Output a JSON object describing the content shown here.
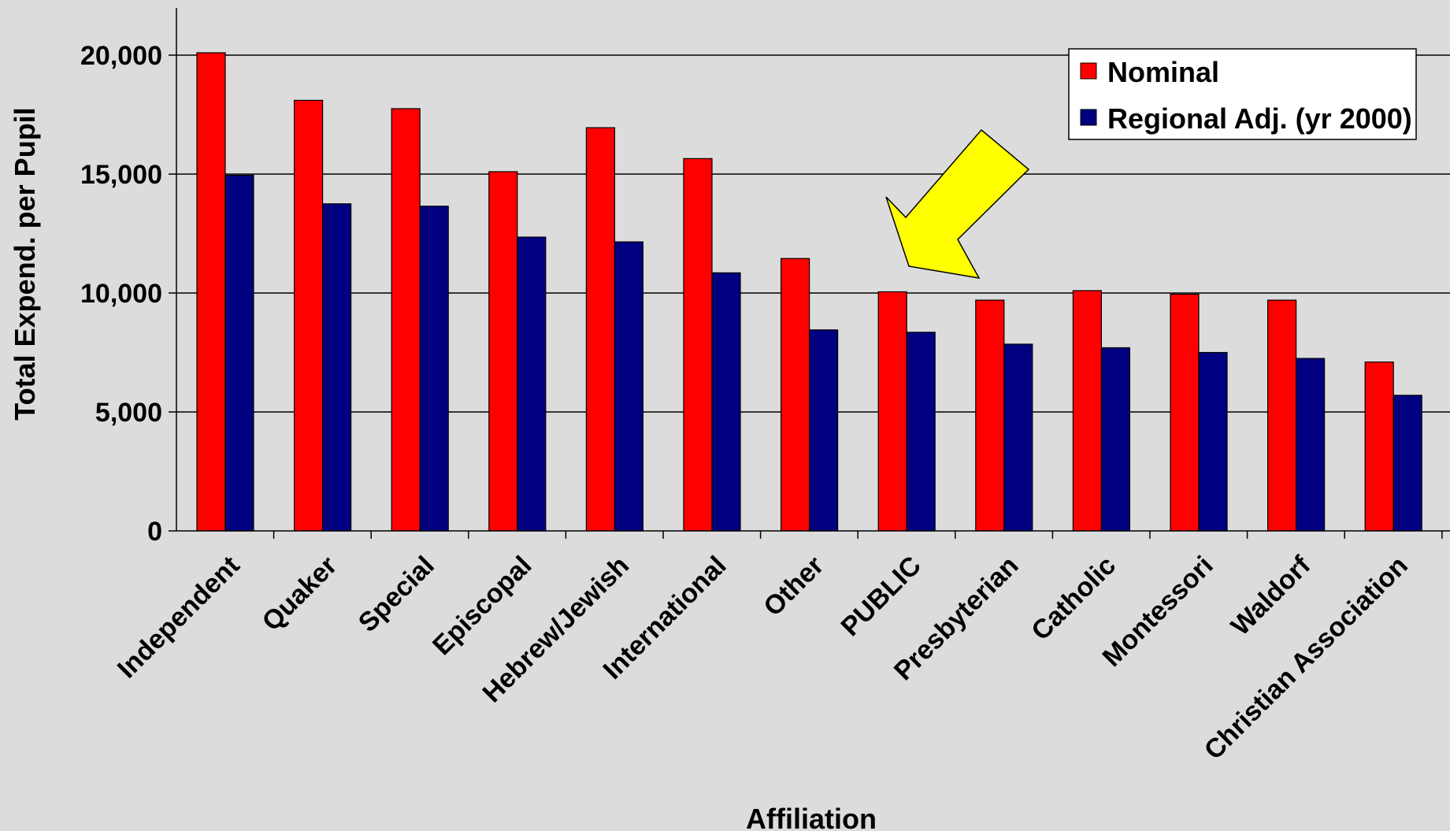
{
  "chart_data": {
    "type": "bar",
    "title": "",
    "xlabel": "Affiliation",
    "ylabel": "Total Expend. per Pupil",
    "ylim": [
      0,
      22000
    ],
    "yticks": [
      0,
      5000,
      10000,
      15000,
      20000
    ],
    "ytick_labels": [
      "0",
      "5,000",
      "10,000",
      "15,000",
      "20,000"
    ],
    "grid": true,
    "legend_position": "top-right",
    "categories": [
      "Independent",
      "Quaker",
      "Special",
      "Episcopal",
      "Hebrew/Jewish",
      "International",
      "Other",
      "PUBLIC",
      "Presbyterian",
      "Catholic",
      "Montessori",
      "Waldorf",
      "Christian Association"
    ],
    "series": [
      {
        "name": "Nominal",
        "color": "#ff0000",
        "values": [
          20100,
          18100,
          17750,
          15100,
          16950,
          15650,
          11450,
          10050,
          9700,
          10100,
          9950,
          9700,
          7100
        ]
      },
      {
        "name": "Regional Adj. (yr 2000)",
        "color": "#000080",
        "values": [
          14950,
          13750,
          13650,
          12350,
          12150,
          10850,
          8450,
          8350,
          7850,
          7700,
          7500,
          7250,
          5700
        ]
      }
    ],
    "annotations": [
      {
        "type": "arrow",
        "color": "#ffff00",
        "points_to": "PUBLIC"
      }
    ]
  }
}
